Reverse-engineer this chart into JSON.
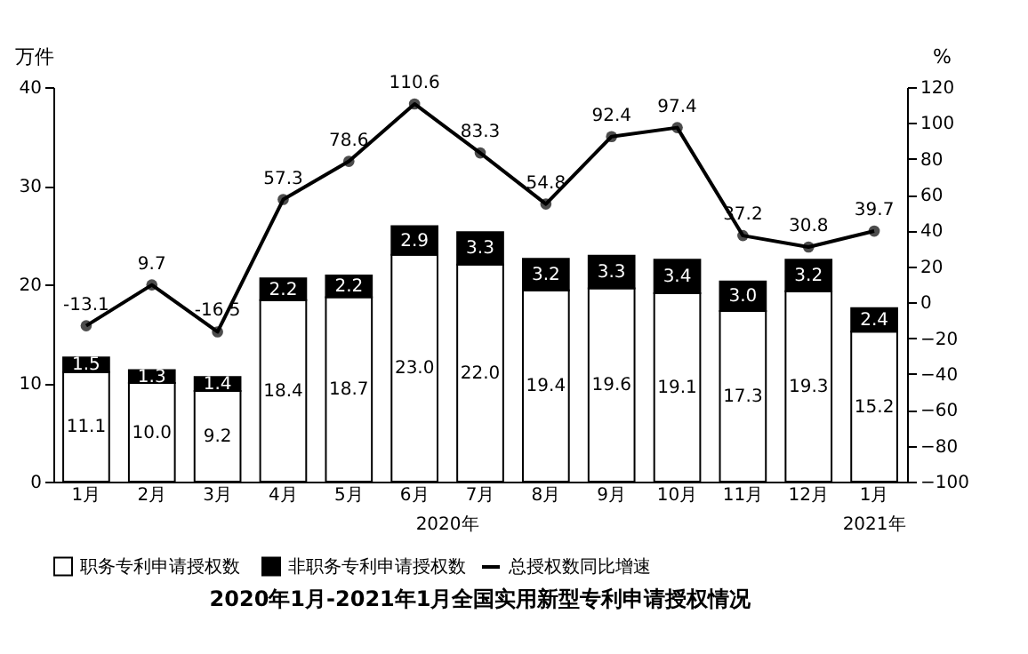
{
  "chart_data": {
    "type": "bar",
    "title": "2020年1月-2021年1月全国实用新型专利申请授权情况",
    "ylabel": "万件",
    "y2label": "%",
    "categories": [
      "1月",
      "2月",
      "3月",
      "4月",
      "5月",
      "6月",
      "7月",
      "8月",
      "9月",
      "10月",
      "11月",
      "12月",
      "1月"
    ],
    "stacked": true,
    "legend": "bottom",
    "grid": false,
    "marker": "circle",
    "line_style": "solid",
    "ylim": [
      0,
      40
    ],
    "yticks": [
      0,
      10,
      20,
      30,
      40
    ],
    "y2lim": [
      -100,
      120
    ],
    "y2ticks": [
      -100,
      -80,
      -60,
      -40,
      -20,
      0,
      20,
      40,
      60,
      80,
      100,
      120
    ],
    "annotations": [
      "2020年",
      "2021年"
    ],
    "series": [
      {
        "name": "职务专利申请授权数",
        "color": "#ffffff",
        "values": [
          11.1,
          10.0,
          9.2,
          18.4,
          18.7,
          23.0,
          22.0,
          19.4,
          19.6,
          19.1,
          17.3,
          19.3,
          15.2
        ],
        "value_labels": [
          "11.1",
          "10.0",
          "9.2",
          "18.4",
          "18.7",
          "23.0",
          "22.0",
          "19.4",
          "19.6",
          "19.1",
          "17.3",
          "19.3",
          "15.2"
        ]
      },
      {
        "name": "非职务专利申请授权数",
        "color": "#000000",
        "values": [
          1.5,
          1.3,
          1.4,
          2.2,
          2.2,
          2.9,
          3.3,
          3.2,
          3.3,
          3.4,
          3.0,
          3.2,
          2.4
        ],
        "value_labels": [
          "1.5",
          "1.3",
          "1.4",
          "2.2",
          "2.2",
          "2.9",
          "3.3",
          "3.2",
          "3.3",
          "3.4",
          "3.0",
          "3.2",
          "2.4"
        ]
      },
      {
        "name": "总授权数同比增速",
        "type": "line",
        "axis": "y2",
        "color": "#000000",
        "values": [
          -13.1,
          9.7,
          -16.5,
          57.3,
          78.6,
          110.6,
          83.3,
          54.8,
          92.4,
          97.4,
          37.2,
          30.8,
          39.7
        ],
        "value_labels": [
          "-13.1",
          "9.7",
          "-16.5",
          "57.3",
          "78.6",
          "110.6",
          "83.3",
          "54.8",
          "92.4",
          "97.4",
          "37.2",
          "30.8",
          "39.7"
        ]
      }
    ]
  }
}
